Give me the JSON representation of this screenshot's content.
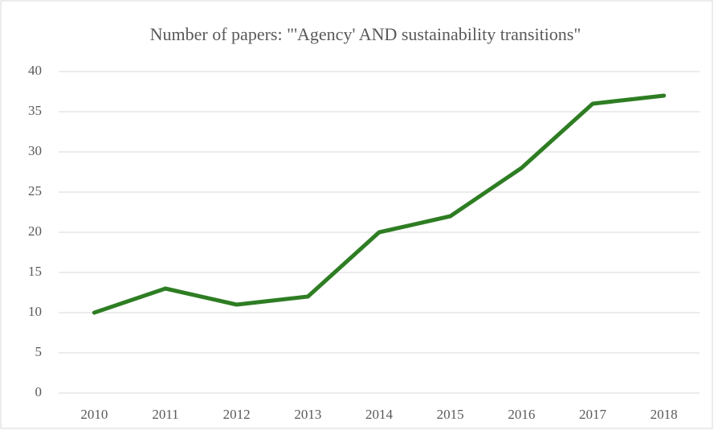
{
  "chart_data": {
    "type": "line",
    "title": "Number of papers: \"'Agency' AND sustainability transitions\"",
    "categories": [
      "2010",
      "2011",
      "2012",
      "2013",
      "2014",
      "2015",
      "2016",
      "2017",
      "2018"
    ],
    "series": [
      {
        "name": "Number of papers",
        "color": "#2e7d23",
        "values": [
          10,
          13,
          11,
          12,
          20,
          22,
          28,
          36,
          37
        ]
      }
    ],
    "ylim": [
      0,
      40
    ],
    "yticks": [
      0,
      5,
      10,
      15,
      20,
      25,
      30,
      35,
      40
    ],
    "grid": true
  }
}
